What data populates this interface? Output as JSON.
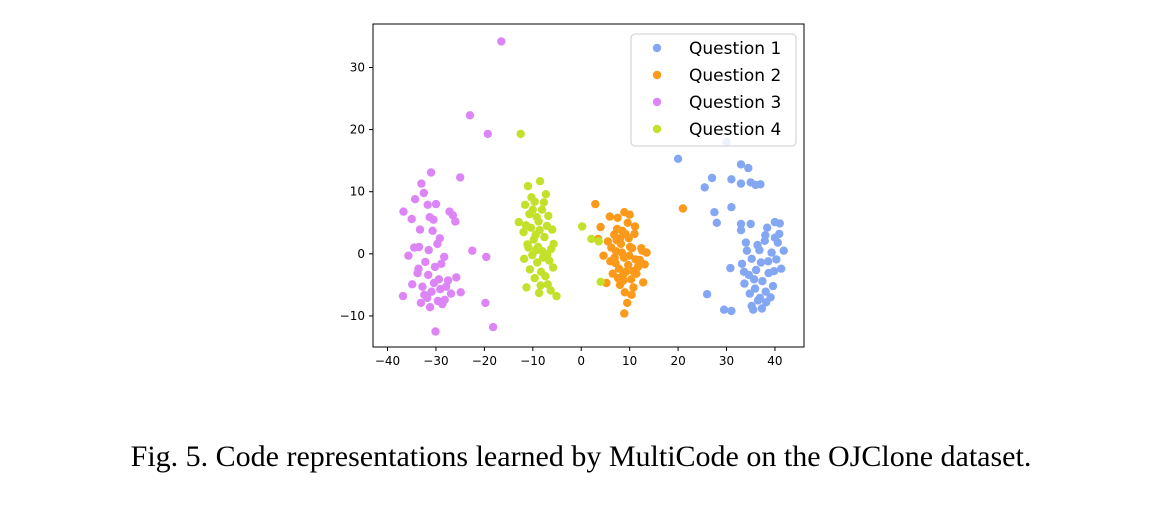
{
  "caption": "Fig. 5.  Code representations learned by MultiCode on the OJClone dataset.",
  "chart_data": {
    "type": "scatter",
    "title": "",
    "xlabel": "",
    "ylabel": "",
    "xlim": [
      -43,
      46
    ],
    "ylim": [
      -15,
      37
    ],
    "xticks": [
      -40,
      -30,
      -20,
      -10,
      0,
      10,
      20,
      30,
      40
    ],
    "xtick_labels": [
      "−40",
      "−30",
      "−20",
      "−10",
      "0",
      "10",
      "20",
      "30",
      "40"
    ],
    "yticks": [
      -10,
      0,
      10,
      20,
      30
    ],
    "ytick_labels": [
      "−10",
      "0",
      "10",
      "20",
      "30"
    ],
    "grid": false,
    "legend_position": "top-right",
    "series": [
      {
        "name": "Question 1",
        "color": "#84a7f4",
        "points": [
          [
            20,
            15.3
          ],
          [
            25.5,
            10.7
          ],
          [
            27,
            12.2
          ],
          [
            30,
            18
          ],
          [
            31,
            12
          ],
          [
            33,
            14.4
          ],
          [
            34.5,
            13.8
          ],
          [
            35,
            11.5
          ],
          [
            33,
            11.3
          ],
          [
            37,
            11.2
          ],
          [
            36,
            11.1
          ],
          [
            31,
            7.5
          ],
          [
            27.5,
            6.7
          ],
          [
            28,
            5
          ],
          [
            33,
            4.8
          ],
          [
            35,
            4.8
          ],
          [
            40,
            5.1
          ],
          [
            41,
            4.9
          ],
          [
            33,
            3.8
          ],
          [
            34,
            1.8
          ],
          [
            38,
            3
          ],
          [
            40,
            2.6
          ],
          [
            41.8,
            0.5
          ],
          [
            26,
            -6.5
          ],
          [
            29.5,
            -9
          ],
          [
            31,
            -9.2
          ],
          [
            35.2,
            -8.4
          ],
          [
            36.5,
            -7.5
          ],
          [
            38.2,
            -7.8
          ],
          [
            35.5,
            -9
          ],
          [
            37.3,
            -8.8
          ],
          [
            39.1,
            -7
          ],
          [
            30.8,
            -2.3
          ],
          [
            33.2,
            -1.6
          ],
          [
            34.6,
            -3.4
          ],
          [
            35.2,
            -0.8
          ],
          [
            36.1,
            -2.6
          ],
          [
            36.8,
            0.6
          ],
          [
            37.4,
            -4.4
          ],
          [
            38.6,
            -1.2
          ],
          [
            39.8,
            -2.8
          ],
          [
            40.6,
            1.8
          ],
          [
            33.7,
            -4.8
          ],
          [
            35.9,
            -5.6
          ],
          [
            37.1,
            -1.4
          ],
          [
            38.7,
            -3.1
          ],
          [
            39.3,
            0.2
          ],
          [
            40.3,
            -0.9
          ],
          [
            34.2,
            0.5
          ],
          [
            36.4,
            1.4
          ],
          [
            41.3,
            -2.4
          ],
          [
            39.6,
            -5.2
          ],
          [
            38.1,
            -6.1
          ],
          [
            34.8,
            -6.4
          ],
          [
            33.6,
            -2.9
          ],
          [
            37.9,
            2.1
          ],
          [
            40.9,
            3.2
          ],
          [
            35.7,
            -4.1
          ],
          [
            38.4,
            4.2
          ],
          [
            36.9,
            -7.1
          ]
        ]
      },
      {
        "name": "Question 2",
        "color": "#fb9a1a",
        "points": [
          [
            2.9,
            8
          ],
          [
            21,
            7.3
          ],
          [
            5.9,
            6
          ],
          [
            7.5,
            5.8
          ],
          [
            8.9,
            6.7
          ],
          [
            10,
            6.3
          ],
          [
            9.6,
            5
          ],
          [
            4,
            4.3
          ],
          [
            7.4,
            4
          ],
          [
            8.5,
            3.7
          ],
          [
            11,
            3.2
          ],
          [
            3.5,
            2.4
          ],
          [
            5.5,
            2
          ],
          [
            6.8,
            3.1
          ],
          [
            8.2,
            1.6
          ],
          [
            9.8,
            2.5
          ],
          [
            10.5,
            0.9
          ],
          [
            12.6,
            0.5
          ],
          [
            13.5,
            0.2
          ],
          [
            4.6,
            -0.3
          ],
          [
            6,
            -1.2
          ],
          [
            7.2,
            0.4
          ],
          [
            8.8,
            -0.6
          ],
          [
            9.7,
            -1.8
          ],
          [
            11.2,
            -0.9
          ],
          [
            13.1,
            -1.7
          ],
          [
            5.2,
            -4.7
          ],
          [
            7.8,
            -2.4
          ],
          [
            8.6,
            -3.5
          ],
          [
            9.2,
            -2.9
          ],
          [
            10.3,
            -4.1
          ],
          [
            11.4,
            -3.2
          ],
          [
            12.8,
            -4.6
          ],
          [
            6.5,
            -3.2
          ],
          [
            8,
            -5
          ],
          [
            9,
            -6.2
          ],
          [
            10.8,
            -5.4
          ],
          [
            9.5,
            -7.9
          ],
          [
            8.9,
            -9.6
          ],
          [
            7.1,
            -1.5
          ],
          [
            10.1,
            1.1
          ],
          [
            11.7,
            -2.1
          ],
          [
            6.2,
            1
          ],
          [
            8.4,
            0.2
          ],
          [
            9.1,
            3.2
          ],
          [
            10.7,
            -2.8
          ],
          [
            7.6,
            -3.9
          ],
          [
            12.1,
            -1
          ],
          [
            8,
            2.5
          ],
          [
            9.9,
            -0.3
          ],
          [
            11.1,
            4.4
          ],
          [
            6.9,
            -0.6
          ],
          [
            10.4,
            -6.6
          ],
          [
            8.7,
            -4.3
          ],
          [
            12.4,
            0.9
          ],
          [
            7.3,
            2.2
          ]
        ]
      },
      {
        "name": "Question 3",
        "color": "#dd84f7",
        "points": [
          [
            -16.5,
            34.2
          ],
          [
            -23,
            22.3
          ],
          [
            -19.3,
            19.3
          ],
          [
            -31,
            13.1
          ],
          [
            -33,
            11.3
          ],
          [
            -32.5,
            9.8
          ],
          [
            -25,
            12.3
          ],
          [
            -34.3,
            8.8
          ],
          [
            -31.7,
            7.9
          ],
          [
            -30,
            8
          ],
          [
            -36.7,
            6.8
          ],
          [
            -35,
            5.6
          ],
          [
            -31.3,
            5.9
          ],
          [
            -30.5,
            5.5
          ],
          [
            -27.2,
            6.8
          ],
          [
            -26.5,
            6.2
          ],
          [
            -33.3,
            3.9
          ],
          [
            -30.7,
            3.7
          ],
          [
            -26,
            5.2
          ],
          [
            -29.2,
            2.5
          ],
          [
            -34.5,
            1
          ],
          [
            -33.5,
            1.1
          ],
          [
            -31.5,
            0.6
          ],
          [
            -29.7,
            1.6
          ],
          [
            -22.5,
            0.5
          ],
          [
            -19.6,
            -0.5
          ],
          [
            -35.7,
            -0.3
          ],
          [
            -32.2,
            -1.3
          ],
          [
            -30.2,
            -2.1
          ],
          [
            -28.3,
            -0.5
          ],
          [
            -33.8,
            -3.1
          ],
          [
            -31.6,
            -3.4
          ],
          [
            -29.4,
            -4.1
          ],
          [
            -27.5,
            -4.3
          ],
          [
            -25.8,
            -3.8
          ],
          [
            -34.9,
            -4.9
          ],
          [
            -32.8,
            -5.3
          ],
          [
            -30.9,
            -6.1
          ],
          [
            -29.1,
            -5.7
          ],
          [
            -28.2,
            -7.4
          ],
          [
            -26.9,
            -6.4
          ],
          [
            -36.8,
            -6.8
          ],
          [
            -33.1,
            -7.9
          ],
          [
            -31.2,
            -8.6
          ],
          [
            -28.7,
            -8.1
          ],
          [
            -24.9,
            -6.2
          ],
          [
            -19.8,
            -7.9
          ],
          [
            -18.2,
            -11.8
          ],
          [
            -30.1,
            -12.5
          ],
          [
            -32.4,
            -6.6
          ],
          [
            -30.4,
            -4.7
          ],
          [
            -27.9,
            -5.3
          ],
          [
            -31.8,
            -7.1
          ],
          [
            -29.6,
            -7.6
          ],
          [
            -33.6,
            -2.4
          ],
          [
            -28.9,
            -1.6
          ]
        ]
      },
      {
        "name": "Question 4",
        "color": "#c3e12b",
        "points": [
          [
            -12.5,
            19.3
          ],
          [
            -11,
            10.9
          ],
          [
            -8.5,
            11.7
          ],
          [
            -10.3,
            9.1
          ],
          [
            -7.3,
            9.6
          ],
          [
            -11.6,
            7.9
          ],
          [
            -9.6,
            8.4
          ],
          [
            -8.1,
            7.1
          ],
          [
            -12.9,
            5.1
          ],
          [
            -10.7,
            6.4
          ],
          [
            -9.2,
            5.9
          ],
          [
            -6.8,
            6.1
          ],
          [
            -11.9,
            3.5
          ],
          [
            -10.4,
            4.2
          ],
          [
            -8.6,
            3.8
          ],
          [
            -7.1,
            4.5
          ],
          [
            -6,
            3.9
          ],
          [
            -11.1,
            1.5
          ],
          [
            -9.8,
            2.3
          ],
          [
            -8.9,
            1.1
          ],
          [
            -7.6,
            2.7
          ],
          [
            -5.7,
            1.6
          ],
          [
            0.2,
            4.4
          ],
          [
            2.1,
            2.4
          ],
          [
            3.6,
            2
          ],
          [
            -11.8,
            -0.8
          ],
          [
            -10.1,
            -0.2
          ],
          [
            -9.1,
            -1.4
          ],
          [
            -7.9,
            -0.6
          ],
          [
            -6.6,
            -1.1
          ],
          [
            -10.6,
            -2.5
          ],
          [
            -8.3,
            -2.9
          ],
          [
            -7.4,
            -3.6
          ],
          [
            -5.8,
            -2.2
          ],
          [
            -11.3,
            -5.4
          ],
          [
            -8.7,
            -6.3
          ],
          [
            -6.9,
            -4.9
          ],
          [
            -5.1,
            -6.8
          ],
          [
            -9.4,
            3.1
          ],
          [
            -8,
            0.4
          ],
          [
            -10.9,
            1
          ],
          [
            -7,
            -0.1
          ],
          [
            -9.6,
            -3.9
          ],
          [
            -6.3,
            -5.9
          ],
          [
            -8.8,
            5.2
          ],
          [
            -10,
            7.1
          ],
          [
            -7.7,
            8.3
          ],
          [
            -9.3,
            0.6
          ],
          [
            -6.2,
            0.8
          ],
          [
            -11.4,
            4.6
          ],
          [
            4,
            -4.5
          ],
          [
            -8.4,
            -5.1
          ]
        ]
      }
    ]
  }
}
